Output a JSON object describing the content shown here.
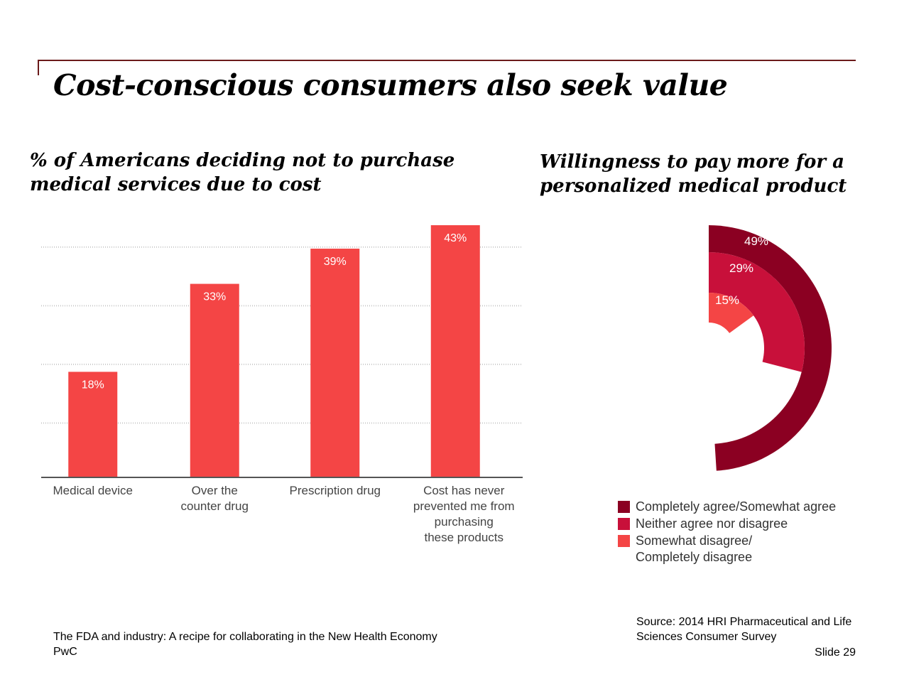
{
  "slide": {
    "title": "Cost-conscious consumers also seek value",
    "footer_title": "The FDA and industry: A recipe for collaborating in the New Health Economy",
    "footer_org": "PwC",
    "source": "Source: 2014 HRI Pharmaceutical and Life Sciences Consumer Survey",
    "slide_number": "Slide 29",
    "accent_color": "#6b1a1a"
  },
  "chart_data": [
    {
      "type": "bar",
      "title": "% of Americans deciding not to purchase medical services due to cost",
      "categories": [
        [
          "Medical device"
        ],
        [
          "Over the",
          "counter drug"
        ],
        [
          "Prescription drug"
        ],
        [
          "Cost has never",
          "prevented me from",
          "purchasing",
          "these products"
        ]
      ],
      "values": [
        18,
        33,
        39,
        43
      ],
      "data_labels": [
        "18%",
        "33%",
        "39%",
        "43%"
      ],
      "ylim": [
        0,
        43
      ],
      "grid": true,
      "color": "#f44545"
    },
    {
      "type": "pie",
      "title": "Willingness to pay more for a personalized medical product",
      "style": "concentric-arcs",
      "series": [
        {
          "name": "Completely agree/Somewhat agree",
          "value": 49,
          "label": "49%",
          "color": "#8b0022"
        },
        {
          "name": "Neither agree nor disagree",
          "value": 29,
          "label": "29%",
          "color": "#c8103a"
        },
        {
          "name": "Somewhat disagree/ Completely disagree",
          "value": 15,
          "label": "15%",
          "color": "#f44545"
        }
      ],
      "legend": "bottom"
    }
  ]
}
